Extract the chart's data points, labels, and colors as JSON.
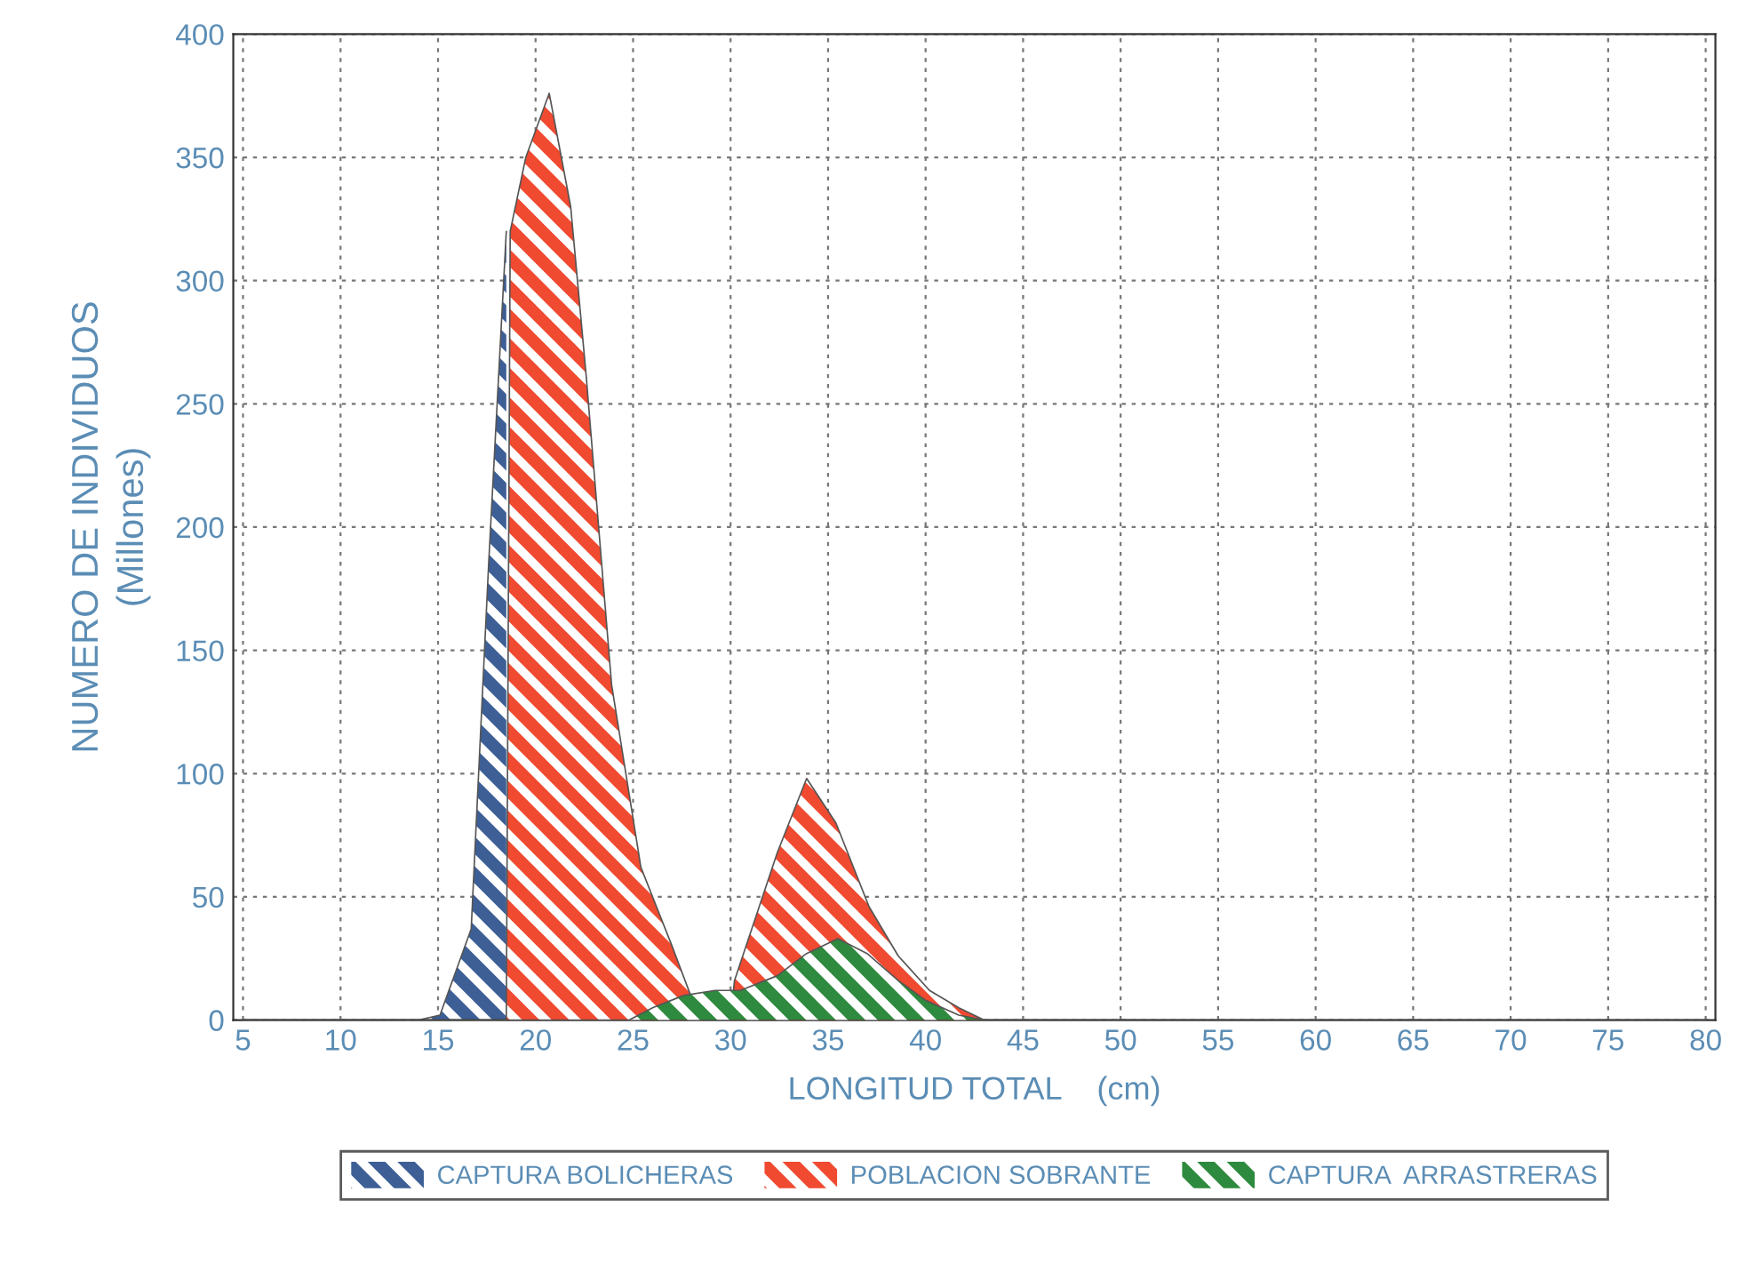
{
  "chart_data": {
    "type": "area",
    "xlabel": "LONGITUD TOTAL    (cm)",
    "ylabel": "NUMERO DE INDIVIDUOS\n(Millones)",
    "xlim": [
      4.5,
      80.5
    ],
    "ylim": [
      0,
      400
    ],
    "xticks": [
      5,
      10,
      15,
      20,
      25,
      30,
      35,
      40,
      45,
      50,
      55,
      60,
      65,
      70,
      75,
      80
    ],
    "yticks": [
      0,
      50,
      100,
      150,
      200,
      250,
      300,
      350,
      400
    ],
    "grid": true,
    "legend": "bottom",
    "series": [
      {
        "name": "CAPTURA BOLICHERAS",
        "color": "#3d5f96",
        "x": [
          5,
          14,
          15.1,
          16.7,
          17.6,
          18.5
        ],
        "values": [
          0,
          0,
          2,
          37,
          186,
          320
        ]
      },
      {
        "name": "POBLACION SOBRANTE",
        "color": "#f04a30",
        "x": [
          5,
          18.5,
          18.7,
          19.5,
          20.7,
          21.8,
          22.6,
          23.9,
          25.4,
          27.0,
          28.0,
          28.6,
          30.0,
          30.2,
          32.4,
          33.9,
          35.4,
          37.1,
          38.6,
          40.2,
          41.7,
          43,
          80
        ],
        "values": [
          0,
          0,
          320,
          350,
          376,
          330,
          261,
          136,
          62,
          30,
          9,
          0,
          0,
          16,
          68,
          98,
          80,
          46,
          26,
          12,
          5,
          0,
          0
        ]
      },
      {
        "name": "CAPTURA  ARRASTRERAS",
        "color": "#2e8a3e",
        "x": [
          5,
          24.8,
          26,
          27.6,
          29.2,
          30.5,
          32.4,
          33.9,
          35.5,
          37,
          38.6,
          40,
          41.7,
          43,
          80
        ],
        "values": [
          0,
          0,
          5,
          10,
          12,
          12,
          18,
          27,
          33,
          27,
          16,
          8,
          2,
          0,
          0
        ]
      }
    ]
  }
}
